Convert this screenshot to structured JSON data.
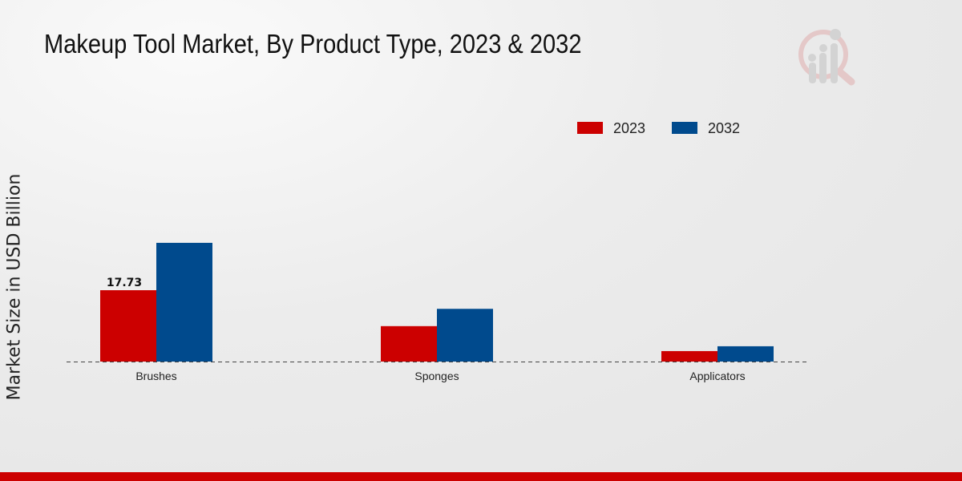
{
  "chart_data": {
    "type": "bar",
    "title": "Makeup Tool Market, By Product Type, 2023 & 2032",
    "xlabel": "",
    "ylabel": "Market Size in USD Billion",
    "categories": [
      "Brushes",
      "Sponges",
      "Applicators"
    ],
    "series": [
      {
        "name": "2023",
        "color": "#cc0000",
        "values": [
          17.73,
          8.8,
          2.6
        ]
      },
      {
        "name": "2032",
        "color": "#004a8d",
        "values": [
          29.5,
          13.1,
          3.8
        ]
      }
    ],
    "data_labels": [
      {
        "series": "2023",
        "category": "Brushes",
        "text": "17.73"
      }
    ],
    "legend_position": "top-right",
    "grid": false
  }
}
